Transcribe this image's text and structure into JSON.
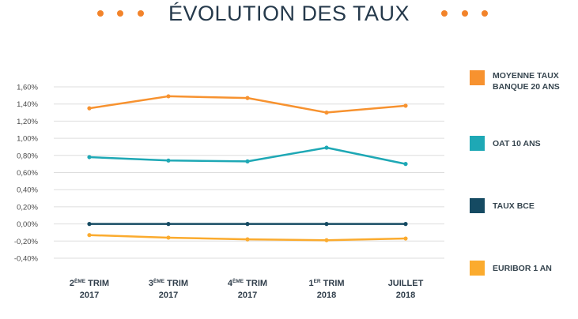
{
  "chart_data": {
    "type": "line",
    "title": "ÉVOLUTION DES TAUX",
    "categories": [
      {
        "main": "2",
        "sup": "ÈME",
        "rest": " TRIM",
        "year": "2017"
      },
      {
        "main": "3",
        "sup": "ÈME",
        "rest": " TRIM",
        "year": "2017"
      },
      {
        "main": "4",
        "sup": "ÈME",
        "rest": " TRIM",
        "year": "2017"
      },
      {
        "main": "1",
        "sup": "ER",
        "rest": " TRIM",
        "year": "2018"
      },
      {
        "main": "JUILLET",
        "sup": "",
        "rest": "",
        "year": "2018"
      }
    ],
    "yticks": [
      "1,60%",
      "1,40%",
      "1,20%",
      "1,00%",
      "0,80%",
      "0,60%",
      "0,40%",
      "0,20%",
      "0,00%",
      "-0,20%",
      "-0,40%"
    ],
    "ylim": [
      -0.4,
      1.6
    ],
    "grid": true,
    "legend_position": "right",
    "series": [
      {
        "name": "MOYENNE TAUX BANQUE 20 ANS",
        "color": "#f7922f",
        "values": [
          1.35,
          1.49,
          1.47,
          1.3,
          1.38
        ]
      },
      {
        "name": "OAT 10 ANS",
        "color": "#1ea8b5",
        "values": [
          0.78,
          0.74,
          0.73,
          0.89,
          0.7
        ]
      },
      {
        "name": "TAUX BCE",
        "color": "#154a62",
        "values": [
          0.0,
          0.0,
          0.0,
          0.0,
          0.0
        ]
      },
      {
        "name": "EURIBOR 1 AN",
        "color": "#fbab2e",
        "values": [
          -0.13,
          -0.16,
          -0.18,
          -0.19,
          -0.17
        ]
      }
    ]
  }
}
